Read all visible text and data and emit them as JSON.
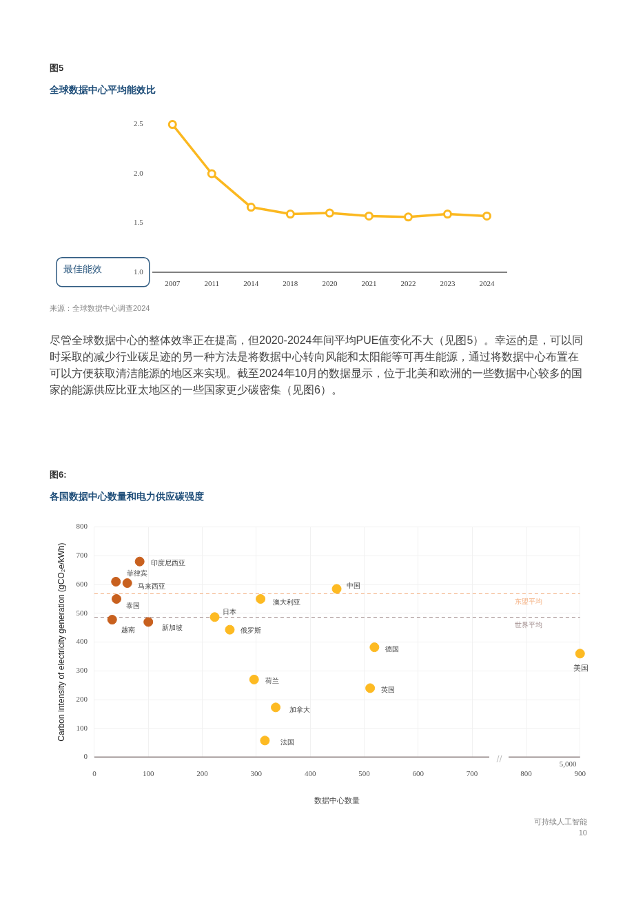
{
  "chart_data": [
    {
      "type": "line",
      "title": "全球数据中心平均能效比",
      "categories": [
        "2007",
        "2011",
        "2014",
        "2018",
        "2020",
        "2021",
        "2022",
        "2023",
        "2024"
      ],
      "series": [
        {
          "color": "#fbb820",
          "values": [
            2.5,
            2.0,
            1.66,
            1.59,
            1.6,
            1.57,
            1.56,
            1.59,
            1.57
          ]
        }
      ],
      "ylim": [
        1,
        2.5
      ],
      "yticks": [
        {
          "value": 1,
          "label": "1.0"
        },
        1.5,
        {
          "value": 2,
          "label": "2.0"
        },
        2.5
      ],
      "marker": "circle",
      "line_style": "solid",
      "annotations": [
        "图5",
        "最佳能效",
        "来源：全球数据中心调查2024",
        "尽管全球数据中心的整体效率正在提高，但2020-2024年间平均PUE值变化不大（见图5）。幸运的是，可以同时采取的减少行业碳足迹的另一种方法是将数据中心转向风能和太阳能等可再生能源，通过将数据中心布置在可以方便获取清洁能源的地区来实现。截至2024年10月的数据显示，位于北美和欧洲的一些数据中心较多的国家的能源供应比亚太地区的一些国家更少碳密集（见图6）。"
      ]
    },
    {
      "type": "scatter",
      "title": "图6:",
      "subtitle": "各国数据中心数量和电力供应碳强度",
      "xlabel": "数据中心数量",
      "ylabel": "Carbon intensity of electricity generation (gCO₂e/kWh)",
      "x": [
        84,
        40,
        61,
        41,
        33,
        100,
        223,
        251,
        308,
        449,
        296,
        336,
        316,
        519,
        511,
        900
      ],
      "values": [
        680,
        610,
        605,
        550,
        478,
        470,
        487,
        443,
        550,
        585,
        270,
        173,
        58,
        382,
        240,
        360
      ],
      "colors": [
        "#c8601e",
        "#c8601e",
        "#c8601e",
        "#c8601e",
        "#c8601e",
        "#c8601e",
        "#fdba22",
        "#fdba22",
        "#fdba22",
        "#fdba22",
        "#fdba22",
        "#fdba22",
        "#fdba22",
        "#fdba22",
        "#fdba22",
        "#fdba22"
      ],
      "xlim": [
        0,
        900
      ],
      "xticks": [
        0,
        100,
        200,
        300,
        400,
        500,
        600,
        700,
        800,
        900
      ],
      "ylim": [
        0,
        800
      ],
      "yticks": [
        0,
        100,
        200,
        300,
        400,
        500,
        600,
        700,
        800
      ],
      "grid": true,
      "marker": "circle",
      "ref_lines": [
        {
          "axis": "y",
          "value": 569,
          "label": "东盟平均",
          "color": "#f4b183",
          "line_style": "dashed"
        },
        {
          "axis": "y",
          "value": 487,
          "label": "世界平均",
          "color": "#a08c8c",
          "line_style": "dashed"
        }
      ],
      "annotations": [
        {
          "text": "印度尼西亚",
          "x": 84,
          "y": 680
        },
        {
          "text": "菲律宾",
          "x": 40,
          "y": 610
        },
        {
          "text": "马来西亚",
          "x": 61,
          "y": 605
        },
        {
          "text": "泰国",
          "x": 41,
          "y": 550
        },
        {
          "text": "越南",
          "x": 33,
          "y": 478
        },
        {
          "text": "新加坡",
          "x": 100,
          "y": 470
        },
        {
          "text": "日本",
          "x": 223,
          "y": 487
        },
        {
          "text": "俄罗斯",
          "x": 251,
          "y": 443
        },
        {
          "text": "澳大利亚",
          "x": 308,
          "y": 550
        },
        {
          "text": "中国",
          "x": 449,
          "y": 585
        },
        {
          "text": "荷兰",
          "x": 296,
          "y": 270
        },
        {
          "text": "加拿大",
          "x": 336,
          "y": 173
        },
        {
          "text": "法国",
          "x": 316,
          "y": 58
        },
        {
          "text": "德国",
          "x": 519,
          "y": 382
        },
        {
          "text": "英国",
          "x": 511,
          "y": 240
        },
        {
          "text": "美国",
          "x": 900,
          "y": 360
        },
        "5,000",
        "可持续人工智能",
        "10"
      ]
    }
  ]
}
